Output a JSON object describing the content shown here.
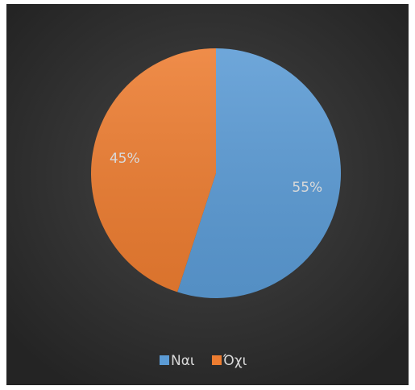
{
  "chart_data": {
    "type": "pie",
    "categories": [
      "Ναι",
      "Όχι"
    ],
    "values": [
      55,
      45
    ],
    "value_labels": [
      "55%",
      "45%"
    ],
    "colors": [
      "#5b9bd5",
      "#ed7d31"
    ],
    "legend": "bottom"
  }
}
